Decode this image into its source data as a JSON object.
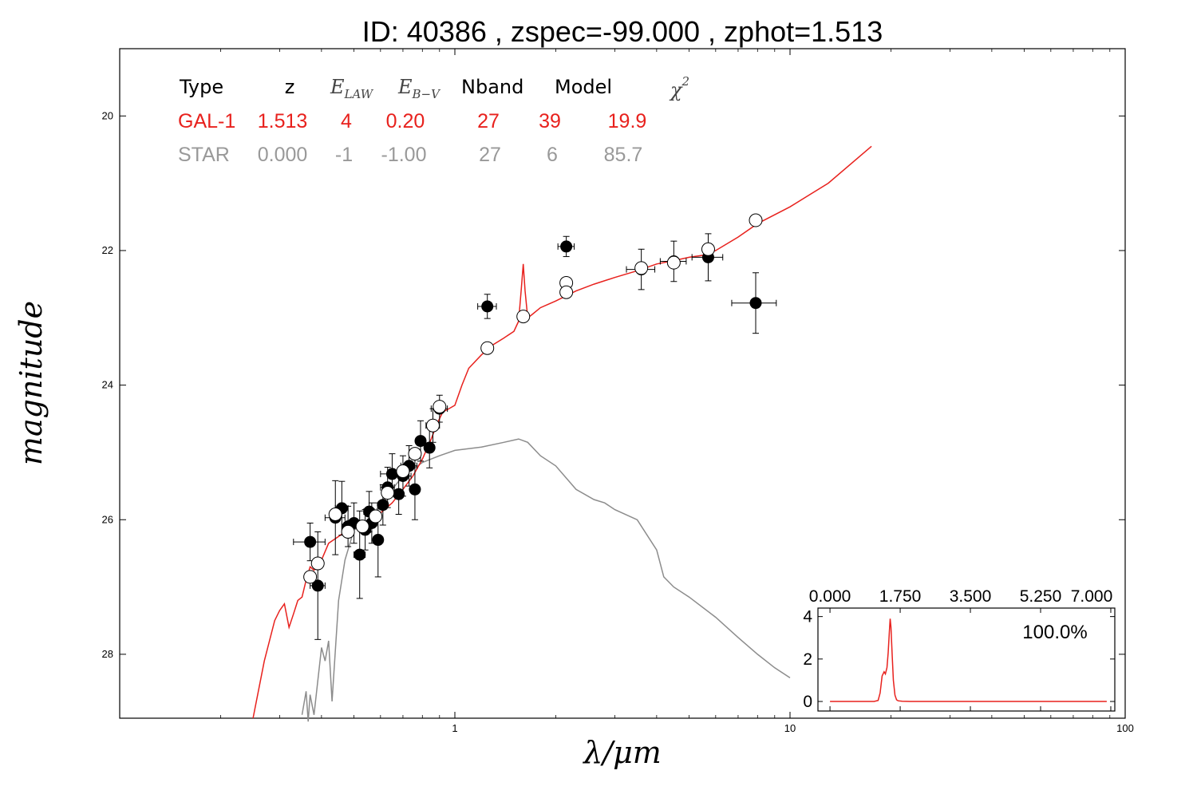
{
  "title": "ID:  40386 , zspec=-99.000 , zphot=1.513",
  "colors": {
    "galaxy": "#e8211d",
    "star": "#8c8c8c",
    "star_text": "#999999",
    "detected": "#000000",
    "model_point": "#ffffff"
  },
  "chart_data": {
    "type": "scatter",
    "xlabel": "λ/μm",
    "ylabel": "magnitude",
    "x_scale": "log",
    "xlim": [
      0.1,
      100
    ],
    "ylim": [
      28.95,
      19.0
    ],
    "y_inverted": true,
    "x_ticks": [
      1,
      10,
      100
    ],
    "x_tick_labels": [
      "1",
      "10",
      "100"
    ],
    "y_ticks": [
      20,
      22,
      24,
      26,
      28
    ],
    "y_tick_labels": [
      "20",
      "22",
      "24",
      "26",
      "28"
    ],
    "grid": false,
    "table": {
      "headers": [
        "Type",
        "z",
        "E",
        "LAW",
        "E",
        "B−V",
        "Nband",
        "Model",
        "χ",
        "2"
      ],
      "galaxy_row": [
        "GAL-1",
        "1.513",
        "4",
        "0.20",
        "27",
        "39",
        "19.9"
      ],
      "star_row": [
        "STAR",
        "0.000",
        "-1",
        "-1.00",
        "27",
        "6",
        "85.7"
      ]
    },
    "series": [
      {
        "kind": "galaxy_model_line",
        "x": [
          0.25,
          0.27,
          0.29,
          0.3,
          0.31,
          0.32,
          0.33,
          0.335,
          0.34,
          0.35,
          0.36,
          0.37,
          0.38,
          0.4,
          0.42,
          0.45,
          0.48,
          0.5,
          0.55,
          0.6,
          0.65,
          0.7,
          0.75,
          0.8,
          0.85,
          0.88,
          0.92,
          0.96,
          1.0,
          1.05,
          1.1,
          1.2,
          1.3,
          1.4,
          1.5,
          1.55,
          1.58,
          1.6,
          1.62,
          1.65,
          1.7,
          1.8,
          2.0,
          2.3,
          2.6,
          3.0,
          3.5,
          4.0,
          4.5,
          5.0,
          5.5,
          6.0,
          7.0,
          8.0,
          10.0,
          13.0,
          17.5
        ],
        "y": [
          28.95,
          28.1,
          27.5,
          27.35,
          27.25,
          27.6,
          27.4,
          27.3,
          27.2,
          27.15,
          26.9,
          26.7,
          26.75,
          26.6,
          26.35,
          26.25,
          26.15,
          26.1,
          26.05,
          25.9,
          25.75,
          25.55,
          25.35,
          25.1,
          24.8,
          24.6,
          24.4,
          24.35,
          24.3,
          24.0,
          23.75,
          23.55,
          23.4,
          23.3,
          23.2,
          23.05,
          22.55,
          22.2,
          22.6,
          23.0,
          22.95,
          22.85,
          22.75,
          22.6,
          22.5,
          22.4,
          22.3,
          22.2,
          22.15,
          22.1,
          22.07,
          22.0,
          21.8,
          21.6,
          21.35,
          21.0,
          20.45
        ]
      },
      {
        "kind": "star_model_line",
        "x": [
          0.35,
          0.36,
          0.365,
          0.37,
          0.38,
          0.39,
          0.4,
          0.41,
          0.42,
          0.43,
          0.45,
          0.47,
          0.5,
          0.55,
          0.6,
          0.65,
          0.7,
          0.75,
          0.8,
          0.9,
          1.0,
          1.2,
          1.4,
          1.55,
          1.65,
          1.8,
          2.0,
          2.3,
          2.6,
          2.8,
          3.0,
          3.5,
          4.0,
          4.2,
          4.5,
          5.0,
          6.0,
          7.0,
          8.0,
          9.0,
          10.0
        ],
        "y": [
          28.9,
          28.55,
          29.0,
          28.6,
          28.9,
          28.4,
          27.9,
          28.1,
          27.8,
          28.7,
          27.2,
          26.6,
          26.15,
          26.05,
          25.75,
          25.55,
          25.35,
          25.25,
          25.15,
          25.05,
          24.97,
          24.92,
          24.85,
          24.8,
          24.85,
          25.05,
          25.2,
          25.55,
          25.7,
          25.75,
          25.85,
          26.0,
          26.45,
          26.85,
          27.0,
          27.15,
          27.45,
          27.75,
          28.0,
          28.2,
          28.35
        ]
      },
      {
        "kind": "observed_points",
        "points": [
          {
            "x": 0.37,
            "y": 26.33,
            "xerr": 0.04,
            "yerr": 0.28
          },
          {
            "x": 0.39,
            "y": 26.98,
            "xerr": 0.02,
            "yerr": 0.8
          },
          {
            "x": 0.44,
            "y": 25.97,
            "xerr": 0.03,
            "yerr": 0.55
          },
          {
            "x": 0.46,
            "y": 25.83,
            "xerr": 0.02,
            "yerr": 0.4
          },
          {
            "x": 0.48,
            "y": 26.1,
            "xerr": 0.02,
            "yerr": 0.3
          },
          {
            "x": 0.5,
            "y": 26.05,
            "xerr": 0.02,
            "yerr": 0.3
          },
          {
            "x": 0.52,
            "y": 26.52,
            "xerr": 0.02,
            "yerr": 0.65
          },
          {
            "x": 0.54,
            "y": 26.15,
            "xerr": 0.02,
            "yerr": 0.3
          },
          {
            "x": 0.555,
            "y": 25.88,
            "xerr": 0.02,
            "yerr": 0.3
          },
          {
            "x": 0.565,
            "y": 26.05,
            "xerr": 0.02,
            "yerr": 0.3
          },
          {
            "x": 0.59,
            "y": 26.3,
            "xerr": 0.02,
            "yerr": 0.55
          },
          {
            "x": 0.61,
            "y": 25.78,
            "xerr": 0.02,
            "yerr": 0.3
          },
          {
            "x": 0.63,
            "y": 25.52,
            "xerr": 0.03,
            "yerr": 0.3
          },
          {
            "x": 0.65,
            "y": 25.32,
            "xerr": 0.05,
            "yerr": 0.3
          },
          {
            "x": 0.68,
            "y": 25.62,
            "xerr": 0.02,
            "yerr": 0.3
          },
          {
            "x": 0.7,
            "y": 25.35,
            "xerr": 0.04,
            "yerr": 0.3
          },
          {
            "x": 0.73,
            "y": 25.2,
            "xerr": 0.04,
            "yerr": 0.3
          },
          {
            "x": 0.76,
            "y": 25.55,
            "xerr": 0.02,
            "yerr": 0.45
          },
          {
            "x": 0.79,
            "y": 24.83,
            "xerr": 0.02,
            "yerr": 0.3
          },
          {
            "x": 0.84,
            "y": 24.93,
            "xerr": 0.02,
            "yerr": 0.3
          },
          {
            "x": 0.86,
            "y": 24.6,
            "xerr": 0.04,
            "yerr": 0.25
          },
          {
            "x": 0.9,
            "y": 24.35,
            "xerr": 0.05,
            "yerr": 0.2
          },
          {
            "x": 1.25,
            "y": 22.83,
            "xerr": 0.08,
            "yerr": 0.18
          },
          {
            "x": 2.15,
            "y": 21.94,
            "xerr": 0.12,
            "yerr": 0.15
          },
          {
            "x": 3.6,
            "y": 22.28,
            "xerr": 0.35,
            "yerr": 0.3
          },
          {
            "x": 4.5,
            "y": 22.16,
            "xerr": 0.4,
            "yerr": 0.3
          },
          {
            "x": 5.7,
            "y": 22.1,
            "xerr": 0.6,
            "yerr": 0.35
          },
          {
            "x": 7.9,
            "y": 22.78,
            "xerr": 1.2,
            "yerr": 0.45
          }
        ]
      },
      {
        "kind": "model_points",
        "points": [
          {
            "x": 0.37,
            "y": 26.85
          },
          {
            "x": 0.39,
            "y": 26.65
          },
          {
            "x": 0.44,
            "y": 25.92
          },
          {
            "x": 0.48,
            "y": 26.18
          },
          {
            "x": 0.53,
            "y": 26.1
          },
          {
            "x": 0.58,
            "y": 25.95
          },
          {
            "x": 0.63,
            "y": 25.6
          },
          {
            "x": 0.7,
            "y": 25.28
          },
          {
            "x": 0.76,
            "y": 25.02
          },
          {
            "x": 0.86,
            "y": 24.6
          },
          {
            "x": 0.9,
            "y": 24.32
          },
          {
            "x": 1.25,
            "y": 23.45
          },
          {
            "x": 1.6,
            "y": 22.98
          },
          {
            "x": 2.15,
            "y": 22.48
          },
          {
            "x": 2.15,
            "y": 22.62
          },
          {
            "x": 3.6,
            "y": 22.26
          },
          {
            "x": 4.5,
            "y": 22.18
          },
          {
            "x": 5.7,
            "y": 21.98
          },
          {
            "x": 7.9,
            "y": 21.55
          }
        ]
      }
    ],
    "inset": {
      "type": "line",
      "x_ticks": [
        0,
        1.75,
        3.5,
        5.25,
        7.0
      ],
      "x_tick_labels": [
        "0.000",
        "1.750",
        "3.500",
        "5.250",
        "7.000"
      ],
      "y_ticks": [
        0,
        2,
        4
      ],
      "y_tick_labels": [
        "0",
        "2",
        "4"
      ],
      "xlim": [
        -0.3,
        7.1
      ],
      "ylim": [
        -0.45,
        4.4
      ],
      "label": "100.0%",
      "x": [
        0.0,
        1.1,
        1.2,
        1.25,
        1.3,
        1.35,
        1.38,
        1.42,
        1.45,
        1.48,
        1.5,
        1.52,
        1.55,
        1.58,
        1.62,
        1.66,
        1.7,
        1.8,
        2.0,
        4.0,
        6.9
      ],
      "y": [
        0.0,
        0.0,
        0.05,
        0.4,
        1.2,
        1.4,
        1.3,
        1.6,
        2.3,
        3.3,
        3.9,
        3.5,
        2.2,
        1.0,
        0.3,
        0.08,
        0.03,
        0.01,
        0.0,
        0.0,
        0.0
      ]
    }
  }
}
